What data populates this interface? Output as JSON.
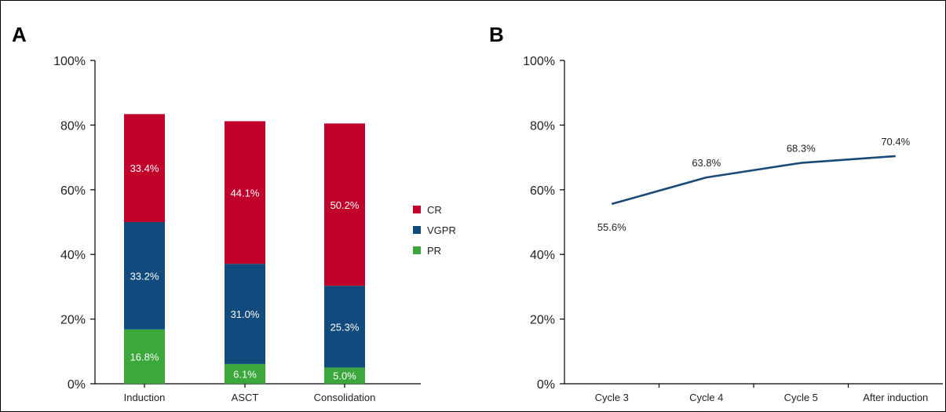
{
  "colors": {
    "CR": "#c0002a",
    "VGPR": "#114a7c",
    "PR": "#3aa83a",
    "line": "#1a4a76"
  },
  "chart_data": [
    {
      "panel": "A",
      "type": "bar",
      "stacked": true,
      "categories": [
        "Induction",
        "ASCT",
        "Consolidation"
      ],
      "series": [
        {
          "name": "PR",
          "values": [
            16.8,
            6.1,
            5.0
          ],
          "labels": [
            "16.8%",
            "6.1%",
            "5.0%"
          ]
        },
        {
          "name": "VGPR",
          "values": [
            33.2,
            31.0,
            25.3
          ],
          "labels": [
            "33.2%",
            "31.0%",
            "25.3%"
          ]
        },
        {
          "name": "CR",
          "values": [
            33.4,
            44.1,
            50.2
          ],
          "labels": [
            "33.4%",
            "44.1%",
            "50.2%"
          ]
        }
      ],
      "legend": [
        "CR",
        "VGPR",
        "PR"
      ],
      "legend_position": "right",
      "ylim": [
        0,
        100
      ],
      "yticks": [
        "0%",
        "20%",
        "40%",
        "60%",
        "80%",
        "100%"
      ],
      "grid": false
    },
    {
      "panel": "B",
      "type": "line",
      "categories": [
        "Cycle 3",
        "Cycle 4",
        "Cycle 5",
        "After induction"
      ],
      "values": [
        55.6,
        63.8,
        68.3,
        70.4
      ],
      "labels": [
        "55.6%",
        "63.8%",
        "68.3%",
        "70.4%"
      ],
      "ylim": [
        0,
        100
      ],
      "yticks": [
        "0%",
        "20%",
        "40%",
        "60%",
        "80%",
        "100%"
      ],
      "grid": false
    }
  ]
}
